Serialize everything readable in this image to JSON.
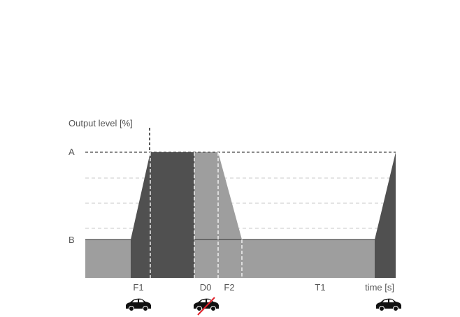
{
  "diagram": {
    "y_axis_label": "Output level [%]",
    "x_axis_label": "time [s]",
    "level_labels": {
      "high": "A",
      "low": "B"
    },
    "time_labels": [
      "F1",
      "D0",
      "F2",
      "T1"
    ],
    "icons": [
      {
        "name": "car-icon",
        "position": "F1"
      },
      {
        "name": "car-crossed-out-icon",
        "position": "D0"
      },
      {
        "name": "car-icon",
        "position": "end"
      }
    ],
    "colors": {
      "active": "#505050",
      "idle": "#9e9e9e",
      "cross": "#e0202a"
    }
  }
}
